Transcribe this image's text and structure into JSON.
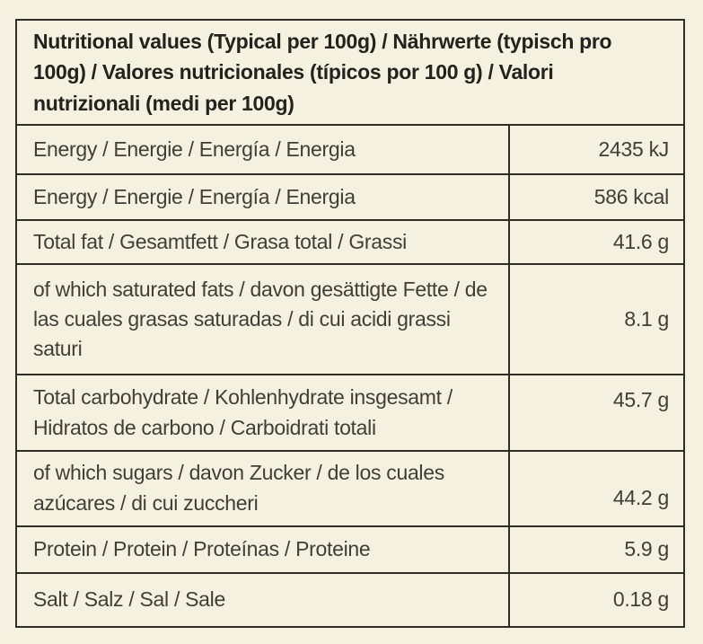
{
  "colors": {
    "background": "#f4f1e1",
    "border": "#2f2d26",
    "row_text": "#403e36",
    "header_text": "#23221c"
  },
  "table": {
    "header_title": "Nutritional values (Typical per 100g) / Nährwerte (typisch pro 100g) / Valores nutricionales (típicos por 100 g) / Valori nutrizionali (medi per 100g)",
    "rows": [
      {
        "label": "Energy / Energie / Energía / Energia",
        "value": "2435 kJ"
      },
      {
        "label": "Energy / Energie / Energía / Energia",
        "value": "586 kcal"
      },
      {
        "label": "Total fat / Gesamtfett / Grasa total / Grassi",
        "value": "41.6 g"
      },
      {
        "label": "of which saturated fats / davon gesättigte Fette / de las cuales grasas saturadas / di cui acidi grassi saturi",
        "value": "8.1 g"
      },
      {
        "label": "Total carbohydrate / Kohlenhydrate insgesamt / Hidratos de carbono / Carboidrati totali",
        "value": "45.7 g"
      },
      {
        "label": "of which sugars / davon Zucker / de los cuales azúcares / di cui zuccheri",
        "value": "44.2 g"
      },
      {
        "label": "Protein / Protein / Proteínas / Proteine",
        "value": "5.9 g"
      },
      {
        "label": "Salt / Salz / Sal / Sale",
        "value": "0.18 g"
      }
    ]
  }
}
